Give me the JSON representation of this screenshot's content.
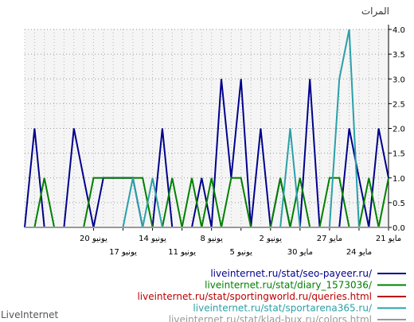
{
  "chart_data": {
    "type": "line",
    "ylabel": "المرات",
    "ylim": [
      0,
      4
    ],
    "y_ticks": [
      "0.0",
      "0.5",
      "1.0",
      "1.5",
      "2.0",
      "2.5",
      "3.0",
      "3.5",
      "4.0"
    ],
    "x_direction": "right-to-left",
    "x_tick_labels": [
      "21 مايو",
      "24 مايو",
      "27 مايو",
      "30 مايو",
      "2 يونيو",
      "5 يونيو",
      "8 يونيو",
      "11 يونيو",
      "14 يونيو",
      "17 يونيو",
      "20 يونيو"
    ],
    "grid": true,
    "series": [
      {
        "name": "liveinternet.ru/stat/seo-payeer.ru/",
        "color": "#00008b",
        "values": [
          1,
          2,
          0,
          1,
          2,
          0,
          0,
          0,
          3,
          0,
          0,
          1,
          0,
          2,
          0,
          3,
          1,
          3,
          0,
          1,
          0,
          0,
          0,
          2,
          0,
          0,
          1,
          1,
          1,
          1,
          0,
          1,
          2,
          0,
          0,
          0,
          2,
          0
        ]
      },
      {
        "name": "liveinternet.ru/stat/diary_1573036/",
        "color": "#008000",
        "values": [
          1,
          0,
          1,
          0,
          0,
          1,
          1,
          0,
          0,
          1,
          0,
          1,
          0,
          0,
          0,
          1,
          1,
          0,
          1,
          0,
          1,
          0,
          1,
          0,
          0,
          1,
          1,
          1,
          1,
          1,
          1,
          0,
          0,
          0,
          0,
          1,
          0,
          0
        ]
      },
      {
        "name": "liveinternet.ru/stat/sportingworld.ru/queries.html",
        "color": "#bb0000",
        "values": [
          0,
          0,
          0,
          0,
          0,
          0,
          0,
          0,
          0,
          0,
          0,
          0,
          0,
          0,
          0,
          0,
          0,
          0,
          0,
          0,
          0,
          0,
          0,
          0,
          0,
          0,
          0,
          0,
          0,
          0,
          0,
          0,
          0,
          0,
          0,
          0,
          0,
          0
        ]
      },
      {
        "name": "liveinternet.ru/stat/sportarena365.ru/",
        "color": "#2aa0a8",
        "values": [
          0,
          0,
          0,
          0,
          4,
          3,
          0,
          0,
          0,
          0,
          2,
          0,
          0,
          0,
          0,
          0,
          0,
          0,
          0,
          0,
          0,
          0,
          0,
          0,
          1,
          0,
          1,
          0,
          0,
          0,
          0,
          0,
          0,
          0,
          0,
          0,
          0,
          0
        ]
      },
      {
        "name": "liveinternet.ru/stat/klad-bux.ru/colors.html",
        "color": "#999999",
        "values": [
          0,
          0,
          0,
          0,
          0,
          0,
          0,
          0,
          0,
          0,
          0,
          0,
          0,
          0,
          0,
          0,
          0,
          0,
          0,
          0,
          0,
          0,
          0,
          0,
          0,
          0,
          0,
          0,
          0,
          0,
          0,
          0,
          0,
          0,
          0,
          0,
          0,
          0
        ]
      }
    ]
  },
  "brand": "LiveInternet"
}
